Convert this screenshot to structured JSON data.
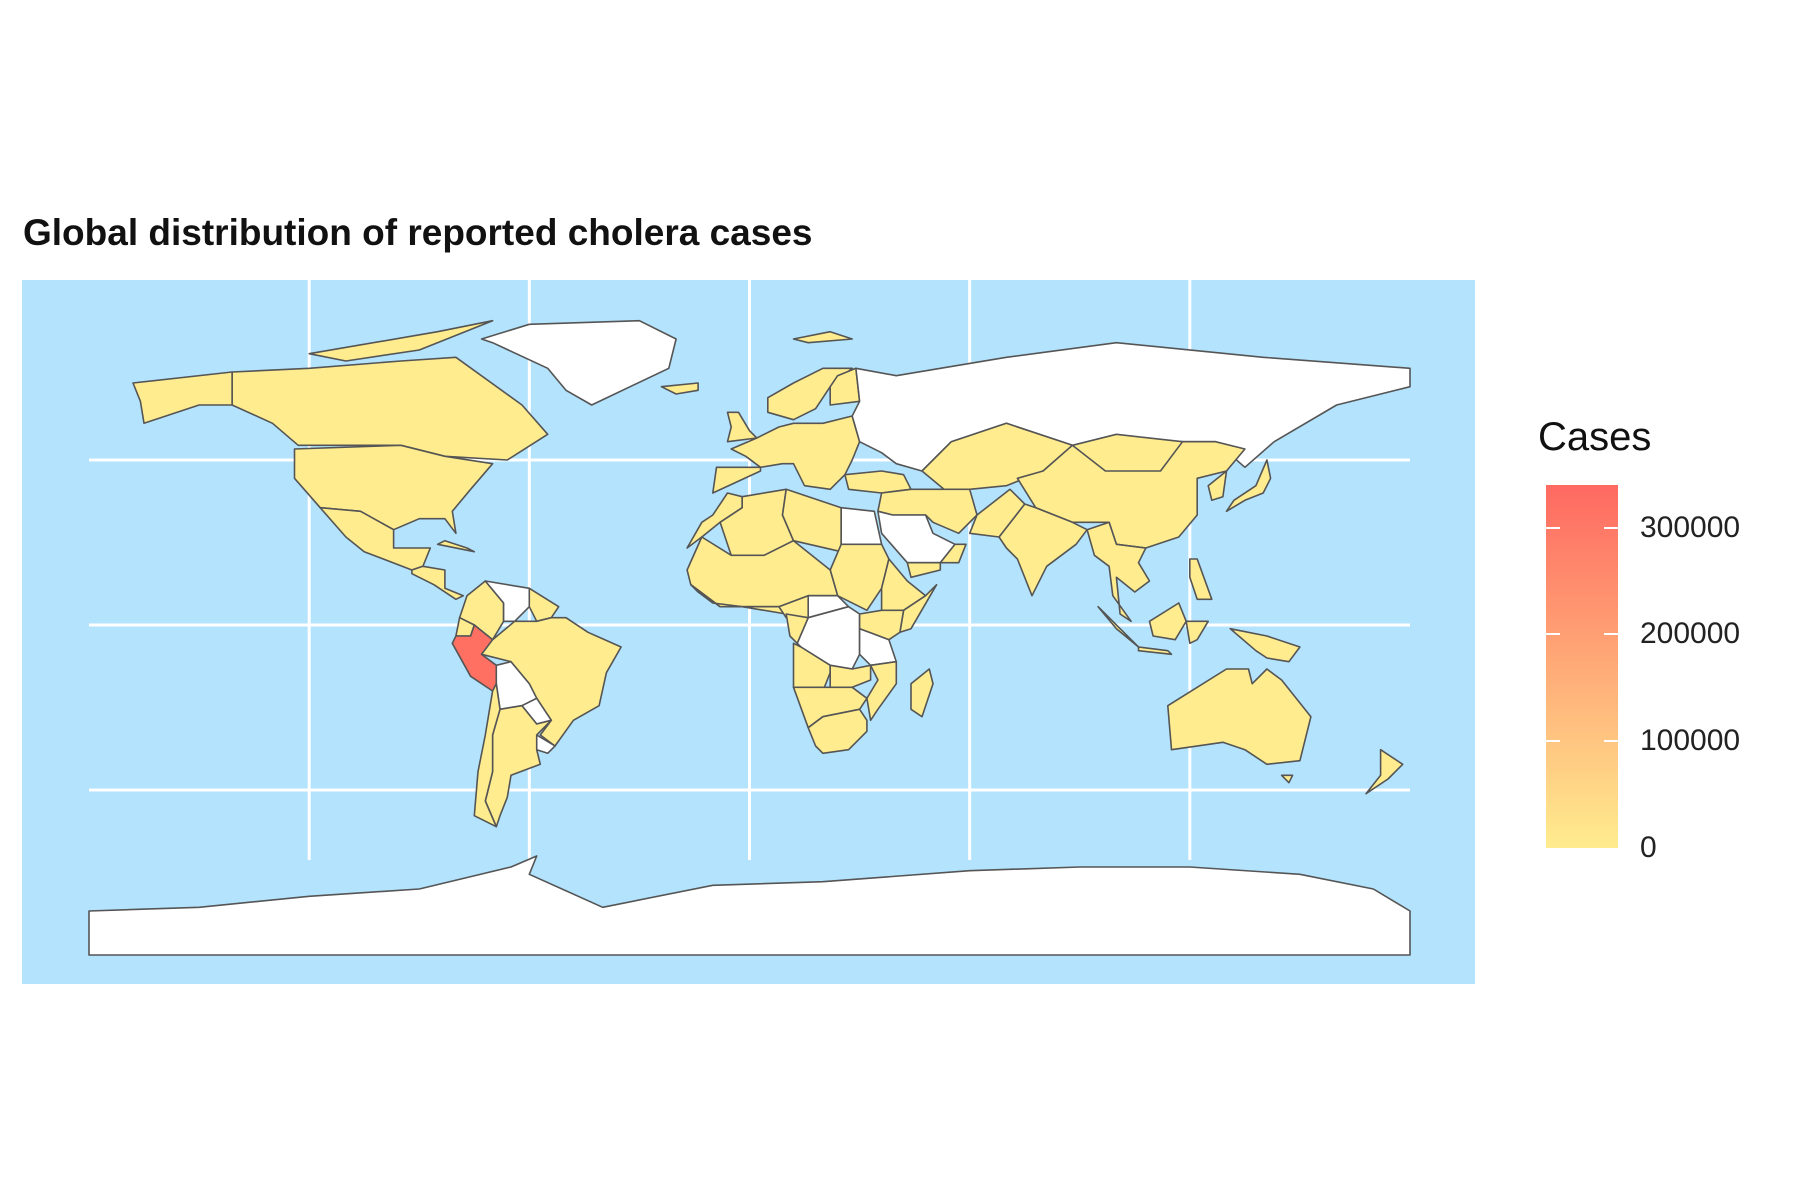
{
  "title": "Global distribution of reported cholera cases",
  "colors": {
    "ocean": "#b3e3fd",
    "country_low": "#ffec8e",
    "country_high": "#ff6961",
    "no_data": "#ffffff",
    "border": "#555555",
    "graticule": "#ffffff"
  },
  "map": {
    "projection": "equirectangular",
    "countries": [
      {
        "name": "Peru",
        "cases": 322562
      },
      {
        "name": "Russia",
        "cases": null
      },
      {
        "name": "Greenland",
        "cases": null
      },
      {
        "name": "Antarctica",
        "cases": null
      },
      {
        "name": "Egypt",
        "cases": null
      },
      {
        "name": "Saudi Arabia",
        "cases": null
      },
      {
        "name": "Bolivia",
        "cases": null
      },
      {
        "name": "Venezuela",
        "cases": null
      },
      {
        "name": "Democratic Republic of the Congo",
        "cases": null
      },
      {
        "name": "Central African Republic",
        "cases": null
      },
      {
        "name": "Tanzania",
        "cases": null
      },
      {
        "name": "Paraguay",
        "cases": null
      },
      {
        "name": "Uruguay",
        "cases": null
      },
      {
        "name": "United States",
        "cases": 0
      },
      {
        "name": "Canada",
        "cases": 0
      },
      {
        "name": "Brazil",
        "cases": 0
      },
      {
        "name": "China",
        "cases": 0
      },
      {
        "name": "India",
        "cases": 0
      },
      {
        "name": "Australia",
        "cases": 0
      }
    ]
  },
  "legend": {
    "title": "Cases",
    "min": 0,
    "max": 340000,
    "ticks": [
      {
        "value": 0,
        "label": "0"
      },
      {
        "value": 100000,
        "label": "100000"
      },
      {
        "value": 200000,
        "label": "200000"
      },
      {
        "value": 300000,
        "label": "300000"
      }
    ]
  }
}
